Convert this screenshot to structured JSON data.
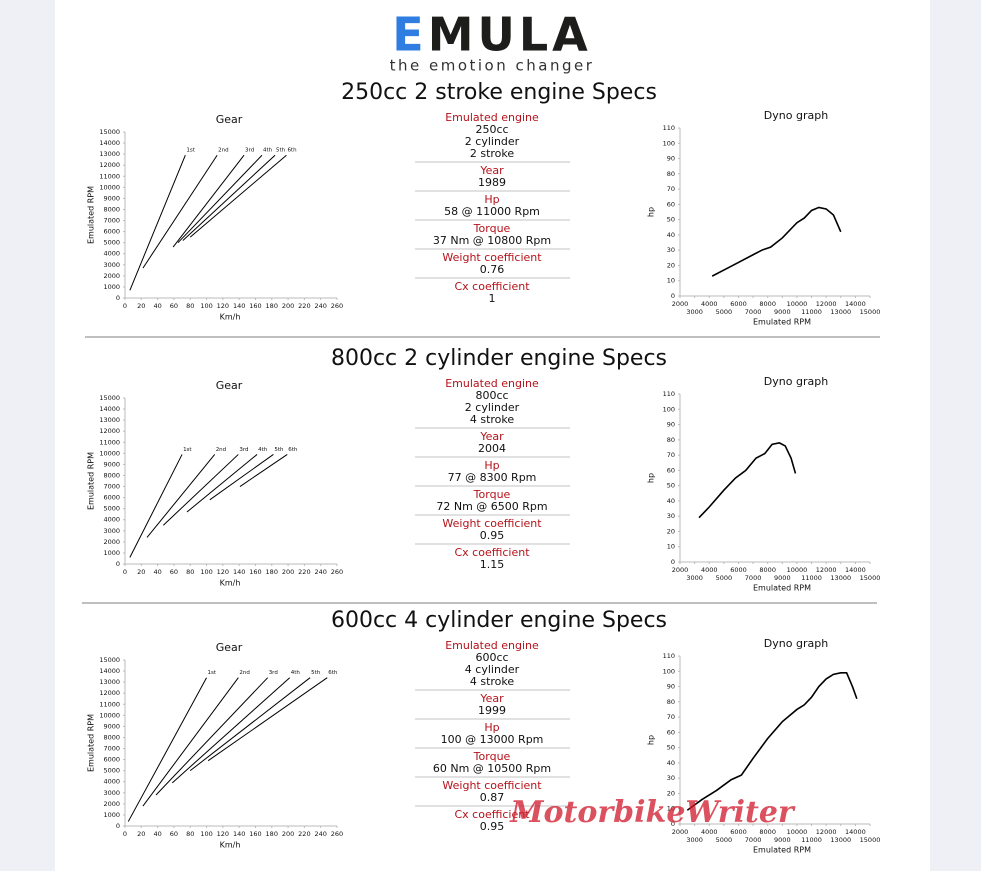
{
  "header": {
    "logo": "EMULA",
    "tagline": "the emotion changer",
    "watermark": "MotorbikeWriter"
  },
  "sections": [
    {
      "title": "250cc 2 stroke engine Specs",
      "specs": [
        {
          "label": "Emulated engine",
          "values": [
            "250cc",
            "2 cylinder",
            "2 stroke"
          ]
        },
        {
          "label": "Year",
          "values": [
            "1989"
          ]
        },
        {
          "label": "Hp",
          "values": [
            "58 @ 11000 Rpm"
          ]
        },
        {
          "label": "Torque",
          "values": [
            "37 Nm @ 10800 Rpm"
          ]
        },
        {
          "label": "Weight coefficient",
          "values": [
            "0.76"
          ]
        },
        {
          "label": "Cx coefficient",
          "values": [
            "1"
          ]
        }
      ]
    },
    {
      "title": "800cc 2 cylinder engine Specs",
      "specs": [
        {
          "label": "Emulated engine",
          "values": [
            "800cc",
            "2 cylinder",
            "4 stroke"
          ]
        },
        {
          "label": "Year",
          "values": [
            "2004"
          ]
        },
        {
          "label": "Hp",
          "values": [
            "77 @ 8300 Rpm"
          ]
        },
        {
          "label": "Torque",
          "values": [
            "72 Nm @ 6500 Rpm"
          ]
        },
        {
          "label": "Weight coefficient",
          "values": [
            "0.95"
          ]
        },
        {
          "label": "Cx coefficient",
          "values": [
            "1.15"
          ]
        }
      ]
    },
    {
      "title": "600cc 4 cylinder engine Specs",
      "specs": [
        {
          "label": "Emulated engine",
          "values": [
            "600cc",
            "4 cylinder",
            "4 stroke"
          ]
        },
        {
          "label": "Year",
          "values": [
            "1999"
          ]
        },
        {
          "label": "Hp",
          "values": [
            "100 @ 13000 Rpm"
          ]
        },
        {
          "label": "Torque",
          "values": [
            "60 Nm @ 10500 Rpm"
          ]
        },
        {
          "label": "Weight coefficient",
          "values": [
            "0.87"
          ]
        },
        {
          "label": "Cx coefficient",
          "values": [
            "0.95"
          ]
        }
      ]
    }
  ],
  "chart_data": [
    {
      "type": "line",
      "title": "Gear",
      "x_label": "Km/h",
      "y_label": "Emulated RPM",
      "xlim": [
        0,
        260
      ],
      "xticks": [
        0,
        20,
        40,
        60,
        80,
        100,
        120,
        140,
        160,
        180,
        200,
        220,
        240,
        260
      ],
      "ylim": [
        0,
        15000
      ],
      "yticks": [
        0,
        1000,
        2000,
        3000,
        4000,
        5000,
        6000,
        7000,
        8000,
        9000,
        10000,
        11000,
        12000,
        13000,
        14000,
        15000
      ],
      "series": [
        {
          "name": "1st",
          "color": "#000000",
          "x": [
            6,
            74
          ],
          "values": [
            700,
            12900
          ]
        },
        {
          "name": "2nd",
          "color": "#000000",
          "x": [
            22,
            113
          ],
          "values": [
            2700,
            12900
          ]
        },
        {
          "name": "3rd",
          "color": "#000000",
          "x": [
            59,
            146
          ],
          "values": [
            4600,
            12900
          ]
        },
        {
          "name": "4th",
          "color": "#000000",
          "x": [
            65,
            168
          ],
          "values": [
            5000,
            12900
          ]
        },
        {
          "name": "5th",
          "color": "#000000",
          "x": [
            71,
            184
          ],
          "values": [
            5200,
            12900
          ]
        },
        {
          "name": "6th",
          "color": "#000000",
          "x": [
            80,
            198
          ],
          "values": [
            5500,
            12900
          ]
        }
      ]
    },
    {
      "type": "line",
      "title": "Dyno graph",
      "x_label": "Emulated RPM",
      "y_label": "hp",
      "xlim": [
        2000,
        15000
      ],
      "xticks": [
        2000,
        3000,
        4000,
        5000,
        6000,
        7000,
        8000,
        9000,
        10000,
        11000,
        12000,
        13000,
        14000,
        15000
      ],
      "ylim": [
        0,
        110
      ],
      "yticks": [
        0,
        10,
        20,
        30,
        40,
        50,
        60,
        70,
        80,
        90,
        100,
        110
      ],
      "series": [
        {
          "color": "#000000",
          "x": [
            4200,
            5000,
            6000,
            7000,
            7600,
            8200,
            9000,
            10000,
            10500,
            11000,
            11500,
            12000,
            12500,
            13000
          ],
          "values": [
            13,
            17,
            22,
            27,
            30,
            32,
            38,
            48,
            51,
            56,
            58,
            57,
            53,
            42
          ]
        }
      ]
    },
    {
      "type": "line",
      "title": "Gear",
      "x_label": "Km/h",
      "y_label": "Emulated RPM",
      "xlim": [
        0,
        260
      ],
      "xticks": [
        0,
        20,
        40,
        60,
        80,
        100,
        120,
        140,
        160,
        180,
        200,
        220,
        240,
        260
      ],
      "ylim": [
        0,
        15000
      ],
      "yticks": [
        0,
        1000,
        2000,
        3000,
        4000,
        5000,
        6000,
        7000,
        8000,
        9000,
        10000,
        11000,
        12000,
        13000,
        14000,
        15000
      ],
      "series": [
        {
          "name": "1st",
          "color": "#000000",
          "x": [
            6,
            70
          ],
          "values": [
            600,
            9900
          ]
        },
        {
          "name": "2nd",
          "color": "#000000",
          "x": [
            27,
            110
          ],
          "values": [
            2400,
            9900
          ]
        },
        {
          "name": "3rd",
          "color": "#000000",
          "x": [
            47,
            139
          ],
          "values": [
            3500,
            9900
          ]
        },
        {
          "name": "4th",
          "color": "#000000",
          "x": [
            76,
            162
          ],
          "values": [
            4700,
            9900
          ]
        },
        {
          "name": "5th",
          "color": "#000000",
          "x": [
            104,
            182
          ],
          "values": [
            5800,
            9900
          ]
        },
        {
          "name": "6th",
          "color": "#000000",
          "x": [
            141,
            199
          ],
          "values": [
            7000,
            9900
          ]
        }
      ]
    },
    {
      "type": "line",
      "title": "Dyno graph",
      "x_label": "Emulated RPM",
      "y_label": "hp",
      "xlim": [
        2000,
        15000
      ],
      "xticks": [
        2000,
        3000,
        4000,
        5000,
        6000,
        7000,
        8000,
        9000,
        10000,
        11000,
        12000,
        13000,
        14000,
        15000
      ],
      "ylim": [
        0,
        110
      ],
      "yticks": [
        0,
        10,
        20,
        30,
        40,
        50,
        60,
        70,
        80,
        90,
        100,
        110
      ],
      "series": [
        {
          "color": "#000000",
          "x": [
            3300,
            4000,
            5000,
            5800,
            6500,
            7200,
            7800,
            8300,
            8800,
            9200,
            9600,
            9900
          ],
          "values": [
            29,
            36,
            47,
            55,
            60,
            68,
            71,
            77,
            78,
            76,
            68,
            58
          ]
        }
      ]
    },
    {
      "type": "line",
      "title": "Gear",
      "x_label": "Km/h",
      "y_label": "Emulated RPM",
      "xlim": [
        0,
        260
      ],
      "xticks": [
        0,
        20,
        40,
        60,
        80,
        100,
        120,
        140,
        160,
        180,
        200,
        220,
        240,
        260
      ],
      "ylim": [
        0,
        15000
      ],
      "yticks": [
        0,
        1000,
        2000,
        3000,
        4000,
        5000,
        6000,
        7000,
        8000,
        9000,
        10000,
        11000,
        12000,
        13000,
        14000,
        15000
      ],
      "series": [
        {
          "name": "1st",
          "color": "#000000",
          "x": [
            4,
            100
          ],
          "values": [
            400,
            13400
          ]
        },
        {
          "name": "2nd",
          "color": "#000000",
          "x": [
            22,
            139
          ],
          "values": [
            1800,
            13400
          ]
        },
        {
          "name": "3rd",
          "color": "#000000",
          "x": [
            38,
            175
          ],
          "values": [
            2800,
            13400
          ]
        },
        {
          "name": "4th",
          "color": "#000000",
          "x": [
            58,
            202
          ],
          "values": [
            3900,
            13400
          ]
        },
        {
          "name": "5th",
          "color": "#000000",
          "x": [
            80,
            227
          ],
          "values": [
            5000,
            13400
          ]
        },
        {
          "name": "6th",
          "color": "#000000",
          "x": [
            102,
            248
          ],
          "values": [
            5900,
            13400
          ]
        }
      ]
    },
    {
      "type": "line",
      "title": "Dyno graph",
      "x_label": "Emulated RPM",
      "y_label": "hp",
      "xlim": [
        2000,
        15000
      ],
      "xticks": [
        2000,
        3000,
        4000,
        5000,
        6000,
        7000,
        8000,
        9000,
        10000,
        11000,
        12000,
        13000,
        14000,
        15000
      ],
      "ylim": [
        0,
        110
      ],
      "yticks": [
        0,
        10,
        20,
        30,
        40,
        50,
        60,
        70,
        80,
        90,
        100,
        110
      ],
      "series": [
        {
          "color": "#000000",
          "x": [
            2500,
            3500,
            4500,
            5500,
            6200,
            7000,
            8000,
            9000,
            10000,
            10500,
            11000,
            11500,
            12000,
            12500,
            13000,
            13400,
            13800,
            14100
          ],
          "values": [
            9,
            16,
            22,
            29,
            32,
            43,
            56,
            67,
            75,
            78,
            83,
            90,
            95,
            98,
            99,
            99,
            90,
            82
          ]
        }
      ]
    }
  ]
}
